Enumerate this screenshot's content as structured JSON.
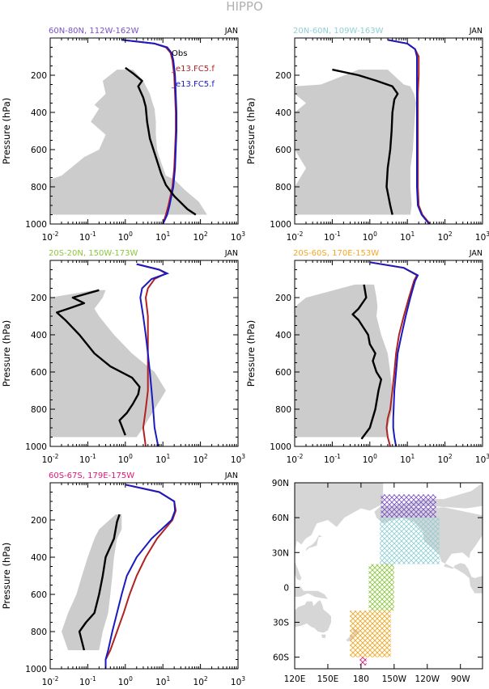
{
  "figure_title": "HIPPO",
  "legend": {
    "obs": "Obs",
    "model_red": "_e13.FC5.f",
    "model_blue": "_e13.FC5.f",
    "obs_color": "#000000",
    "model_red_color": "#b22222",
    "model_blue_color": "#1a1ac0"
  },
  "month": "JAN",
  "ylabel": "Pressure (hPa)",
  "y_ticks": [
    "200",
    "400",
    "600",
    "800",
    "1000"
  ],
  "x_ticks": [
    {
      "base": "10",
      "exp": "-2"
    },
    {
      "base": "10",
      "exp": "-1"
    },
    {
      "base": "10",
      "exp": "0"
    },
    {
      "base": "10",
      "exp": "1"
    },
    {
      "base": "10",
      "exp": "2"
    },
    {
      "base": "10",
      "exp": "3"
    }
  ],
  "chart_data": [
    {
      "type": "line",
      "title": "60N-80N, 112W-162W",
      "title_color": "#7b52c8",
      "xscale": "log",
      "xlim": [
        0.01,
        1000
      ],
      "ylim": [
        1000,
        0
      ],
      "ylabel": "Pressure (hPa)",
      "obs": {
        "p": [
          160,
          190,
          230,
          260,
          320,
          370,
          450,
          540,
          640,
          730,
          790,
          850,
          920,
          950
        ],
        "x": [
          1.0,
          1.6,
          2.8,
          2.2,
          3.0,
          3.5,
          3.8,
          4.5,
          6.5,
          9,
          12,
          20,
          45,
          75
        ]
      },
      "obs_range": {
        "p": [
          170,
          230,
          300,
          360,
          380,
          450,
          520,
          600,
          640,
          740,
          760,
          820,
          880,
          950
        ],
        "lo": [
          0.6,
          0.25,
          0.3,
          0.15,
          0.2,
          0.12,
          0.3,
          0.2,
          0.08,
          0.02,
          0.01,
          0.01,
          0.01,
          0.01
        ],
        "hi": [
          1.6,
          3.0,
          4.5,
          5.5,
          6.0,
          6.5,
          6.5,
          7.0,
          8.0,
          12,
          20,
          40,
          90,
          150
        ]
      },
      "model_red": {
        "p": [
          10,
          30,
          50,
          80,
          120,
          200,
          300,
          400,
          500,
          600,
          700,
          800,
          900,
          950,
          1000
        ],
        "x": [
          0.8,
          6,
          12,
          16,
          18,
          20,
          21,
          22,
          22,
          21,
          20,
          18,
          14,
          12,
          10
        ]
      },
      "model_blue": {
        "p": [
          10,
          30,
          50,
          80,
          120,
          200,
          300,
          400,
          500,
          600,
          700,
          800,
          900,
          950,
          1000
        ],
        "x": [
          0.8,
          6,
          13,
          17,
          19,
          21,
          22,
          23,
          23,
          22,
          21,
          19,
          15,
          13,
          10
        ]
      }
    },
    {
      "type": "line",
      "title": "20N-60N, 109W-163W",
      "title_color": "#8fcfd6",
      "xscale": "log",
      "xlim": [
        0.01,
        1000
      ],
      "ylim": [
        1000,
        0
      ],
      "ylabel": "Pressure (hPa)",
      "obs": {
        "p": [
          170,
          200,
          230,
          260,
          300,
          330,
          400,
          500,
          600,
          700,
          800,
          900,
          950
        ],
        "x": [
          0.1,
          0.5,
          1.5,
          4.0,
          5.5,
          4.5,
          4.0,
          3.8,
          3.5,
          3.0,
          2.8,
          3.5,
          4.0
        ]
      },
      "obs_range": {
        "p": [
          170,
          250,
          260,
          300,
          350,
          400,
          500,
          600,
          700,
          800,
          900,
          950
        ],
        "lo": [
          0.5,
          0.05,
          0.01,
          0.01,
          0.02,
          0.01,
          0.01,
          0.01,
          0.02,
          0.01,
          0.01,
          0.01
        ],
        "hi": [
          3.0,
          8.0,
          12,
          15,
          17,
          16,
          15,
          14,
          12,
          12,
          13,
          12
        ]
      },
      "model_red": {
        "p": [
          10,
          30,
          60,
          100,
          200,
          300,
          400,
          500,
          600,
          700,
          800,
          900,
          950,
          1000
        ],
        "x": [
          3,
          10,
          16,
          20,
          20,
          19,
          19,
          19,
          19,
          19,
          19,
          20,
          25,
          40
        ]
      },
      "model_blue": {
        "p": [
          10,
          30,
          60,
          100,
          200,
          300,
          400,
          500,
          600,
          700,
          800,
          900,
          950,
          1000
        ],
        "x": [
          3,
          10,
          16,
          18,
          18,
          18,
          18,
          18,
          18,
          18,
          18,
          19,
          24,
          38
        ]
      }
    },
    {
      "type": "line",
      "title": "20S-20N, 150W-173W",
      "title_color": "#8cc63f",
      "xscale": "log",
      "xlim": [
        0.01,
        1000
      ],
      "ylim": [
        1000,
        0
      ],
      "ylabel": "Pressure (hPa)",
      "obs": {
        "p": [
          160,
          200,
          230,
          260,
          280,
          320,
          400,
          500,
          570,
          630,
          680,
          720,
          770,
          820,
          860,
          940
        ],
        "x": [
          0.2,
          0.04,
          0.08,
          0.03,
          0.015,
          0.025,
          0.06,
          0.15,
          0.4,
          1.5,
          2.4,
          2.2,
          1.6,
          1.1,
          0.7,
          1.0
        ]
      },
      "obs_range": {
        "p": [
          160,
          200,
          260,
          300,
          400,
          500,
          600,
          700,
          800,
          900,
          950
        ],
        "lo": [
          0.15,
          0.01,
          0.01,
          0.01,
          0.01,
          0.01,
          0.01,
          0.01,
          0.01,
          0.01,
          0.01
        ],
        "hi": [
          0.3,
          0.25,
          0.15,
          0.2,
          0.5,
          1.5,
          6,
          12,
          6,
          3,
          2
        ]
      },
      "model_red": {
        "p": [
          20,
          50,
          70,
          100,
          150,
          200,
          300,
          400,
          500,
          600,
          700,
          800,
          900,
          1000
        ],
        "x": [
          2,
          8,
          12,
          6,
          4,
          3.5,
          4,
          4,
          4,
          4,
          4,
          3.5,
          3,
          3.5
        ]
      },
      "model_blue": {
        "p": [
          20,
          50,
          70,
          100,
          150,
          200,
          300,
          400,
          500,
          600,
          700,
          800,
          900,
          1000
        ],
        "x": [
          2,
          8,
          13,
          5,
          2.8,
          2.5,
          3,
          3.5,
          4,
          4.5,
          5,
          5.5,
          6,
          7.5
        ]
      }
    },
    {
      "type": "line",
      "title": "20S-60S, 170E-153W",
      "title_color": "#f5a623",
      "xscale": "log",
      "xlim": [
        0.01,
        1000
      ],
      "ylim": [
        1000,
        0
      ],
      "ylabel": "Pressure (hPa)",
      "obs": {
        "p": [
          130,
          200,
          260,
          290,
          320,
          400,
          450,
          500,
          540,
          600,
          640,
          700,
          800,
          900,
          960
        ],
        "x": [
          0.7,
          0.8,
          0.5,
          0.35,
          0.5,
          0.9,
          1.0,
          1.4,
          1.2,
          1.5,
          2.0,
          1.7,
          1.4,
          1.0,
          0.6
        ]
      },
      "obs_range": {
        "p": [
          130,
          200,
          250,
          300,
          400,
          500,
          600,
          700,
          800,
          900,
          950
        ],
        "lo": [
          0.4,
          0.02,
          0.01,
          0.01,
          0.01,
          0.01,
          0.01,
          0.01,
          0.01,
          0.01,
          0.01
        ],
        "hi": [
          1.3,
          1.5,
          1.6,
          1.5,
          2.0,
          3.0,
          3.5,
          4.0,
          4.0,
          3.0,
          3.0
        ]
      },
      "model_red": {
        "p": [
          10,
          40,
          80,
          110,
          200,
          300,
          400,
          500,
          600,
          700,
          800,
          850,
          900,
          950,
          1000
        ],
        "x": [
          1,
          8,
          18,
          15,
          11,
          8,
          6,
          5,
          4.5,
          4,
          3.5,
          3.0,
          2.8,
          3.0,
          3.5
        ]
      },
      "model_blue": {
        "p": [
          10,
          40,
          80,
          110,
          200,
          300,
          400,
          500,
          600,
          700,
          800,
          850,
          900,
          950,
          1000
        ],
        "x": [
          1,
          8,
          19,
          16,
          12,
          9,
          7,
          5.5,
          5,
          4.5,
          4.3,
          4.2,
          4.2,
          4.5,
          5
        ]
      }
    },
    {
      "type": "line",
      "title": "60S-67S, 179E-175W",
      "title_color": "#e0167d",
      "xscale": "log",
      "xlim": [
        0.01,
        1000
      ],
      "ylim": [
        1000,
        0
      ],
      "ylabel": "Pressure (hPa)",
      "obs": {
        "p": [
          170,
          210,
          300,
          370,
          400,
          500,
          600,
          700,
          750,
          800,
          900
        ],
        "x": [
          0.7,
          0.6,
          0.5,
          0.35,
          0.3,
          0.25,
          0.2,
          0.15,
          0.09,
          0.06,
          0.08
        ]
      },
      "obs_range": {
        "p": [
          170,
          250,
          300,
          400,
          500,
          600,
          700,
          800,
          900
        ],
        "lo": [
          0.55,
          0.2,
          0.15,
          0.1,
          0.07,
          0.05,
          0.03,
          0.02,
          0.03
        ],
        "hi": [
          0.8,
          0.8,
          0.6,
          0.5,
          0.45,
          0.4,
          0.35,
          0.25,
          0.2
        ]
      },
      "model_red": {
        "p": [
          10,
          50,
          100,
          150,
          200,
          300,
          400,
          500,
          600,
          700,
          800,
          900,
          950,
          1000
        ],
        "x": [
          1,
          8,
          20,
          22,
          18,
          7,
          3.5,
          2,
          1.3,
          0.9,
          0.6,
          0.4,
          0.3,
          0.3
        ]
      },
      "model_blue": {
        "p": [
          10,
          50,
          100,
          150,
          200,
          300,
          400,
          500,
          600,
          700,
          800,
          900,
          950,
          1000
        ],
        "x": [
          1,
          8,
          20,
          21,
          17,
          5,
          2,
          1.1,
          0.8,
          0.6,
          0.45,
          0.35,
          0.3,
          0.3
        ]
      }
    },
    {
      "type": "map",
      "lon_ticks": [
        "120E",
        "150E",
        "180",
        "150W",
        "120W",
        "90W"
      ],
      "lat_ticks": [
        "90N",
        "60N",
        "30N",
        "0",
        "30S",
        "60S"
      ],
      "lon_range_east": [
        120,
        290
      ],
      "lat_range": [
        -70,
        90
      ],
      "regions": [
        {
          "name": "60N-80N, 112W-162W",
          "lon_east": [
            198,
            248
          ],
          "lat": [
            60,
            80
          ],
          "color": "#7b52c8"
        },
        {
          "name": "20N-60N, 109W-163W",
          "lon_east": [
            197,
            251
          ],
          "lat": [
            20,
            60
          ],
          "color": "#8fcfd6"
        },
        {
          "name": "20S-20N, 150W-173W",
          "lon_east": [
            187,
            210
          ],
          "lat": [
            -20,
            20
          ],
          "color": "#8cc63f"
        },
        {
          "name": "20S-60S, 170E-153W",
          "lon_east": [
            170,
            207
          ],
          "lat": [
            -60,
            -20
          ],
          "color": "#f5a623"
        },
        {
          "name": "60S-67S, 179E-175W",
          "lon_east": [
            179,
            185
          ],
          "lat": [
            -67,
            -60
          ],
          "color": "#e0167d"
        }
      ]
    }
  ]
}
